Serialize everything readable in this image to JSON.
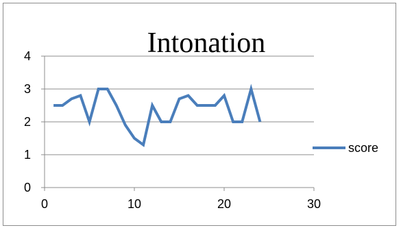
{
  "chart_data": {
    "type": "line",
    "title": "Intonation",
    "xlabel": "",
    "ylabel": "",
    "xlim": [
      0,
      30
    ],
    "ylim": [
      0,
      4
    ],
    "x_ticks": [
      "0",
      "10",
      "20",
      "30"
    ],
    "y_ticks": [
      "0",
      "1",
      "2",
      "3",
      "4"
    ],
    "grid": "horizontal",
    "legend_position": "right",
    "series": [
      {
        "name": "score",
        "color": "#4a7ebb",
        "x": [
          1,
          2,
          3,
          4,
          5,
          6,
          7,
          8,
          9,
          10,
          11,
          12,
          13,
          14,
          15,
          16,
          17,
          18,
          19,
          20,
          21,
          22,
          23,
          24
        ],
        "y": [
          2.5,
          2.5,
          2.7,
          2.8,
          2.0,
          3.0,
          3.0,
          2.5,
          1.9,
          1.5,
          1.3,
          2.5,
          2.0,
          2.0,
          2.7,
          2.8,
          2.5,
          2.5,
          2.5,
          2.8,
          2.0,
          2.0,
          3.0,
          2.0
        ]
      }
    ]
  }
}
